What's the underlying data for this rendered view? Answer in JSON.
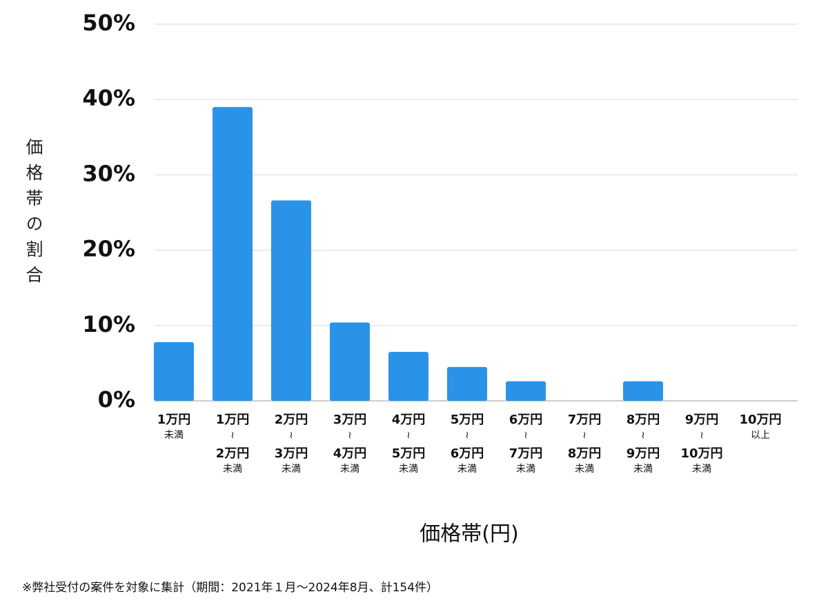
{
  "chart_data": {
    "type": "bar",
    "y_label": "価格帯の割合",
    "x_label": "価格帯(円)",
    "note": "※弊社受付の案件を対象に集計（期間：2021年１月〜2024年8月、計154件）",
    "categories": [
      [
        "1万円",
        "未満"
      ],
      [
        "1万円",
        "≀",
        "2万円",
        "未満"
      ],
      [
        "2万円",
        "≀",
        "3万円",
        "未満"
      ],
      [
        "3万円",
        "≀",
        "4万円",
        "未満"
      ],
      [
        "4万円",
        "≀",
        "5万円",
        "未満"
      ],
      [
        "5万円",
        "≀",
        "6万円",
        "未満"
      ],
      [
        "6万円",
        "≀",
        "7万円",
        "未満"
      ],
      [
        "7万円",
        "≀",
        "8万円",
        "未満"
      ],
      [
        "8万円",
        "≀",
        "9万円",
        "未満"
      ],
      [
        "9万円",
        "≀",
        "10万円",
        "未満"
      ],
      [
        "10万円",
        "以上"
      ]
    ],
    "values": [
      7.8,
      39.0,
      26.6,
      10.4,
      6.5,
      4.5,
      2.6,
      0,
      2.6,
      0,
      0
    ],
    "color": "#2a93e8",
    "ylim": [
      0,
      50
    ],
    "yticks": [
      {
        "value": 0,
        "label": "0%"
      },
      {
        "value": 10,
        "label": "10%"
      },
      {
        "value": 20,
        "label": "20%"
      },
      {
        "value": 30,
        "label": "30%"
      },
      {
        "value": 40,
        "label": "40%"
      },
      {
        "value": 50,
        "label": "50%"
      }
    ],
    "grid": true
  }
}
